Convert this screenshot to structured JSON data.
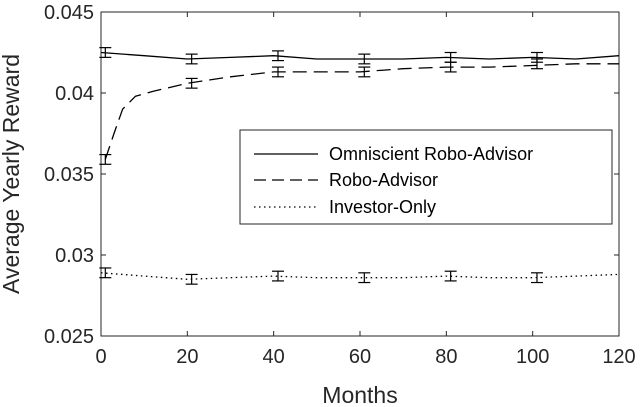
{
  "chart_data": {
    "type": "line",
    "title": "",
    "xlabel": "Months",
    "ylabel": "Average Yearly Reward",
    "xlim": [
      0,
      120
    ],
    "ylim": [
      0.025,
      0.045
    ],
    "xticks": [
      "0",
      "20",
      "40",
      "60",
      "80",
      "100",
      "120"
    ],
    "yticks": [
      "0.025",
      "0.03",
      "0.035",
      "0.04",
      "0.045"
    ],
    "grid": false,
    "legend_position": "center-right",
    "series": [
      {
        "name": "Omniscient Robo-Advisor",
        "style": "solid",
        "x": [
          0,
          10,
          20,
          30,
          40,
          50,
          60,
          70,
          80,
          90,
          100,
          110,
          120
        ],
        "y": [
          0.0425,
          0.0423,
          0.0421,
          0.0422,
          0.0423,
          0.0421,
          0.0421,
          0.0421,
          0.0422,
          0.0421,
          0.0422,
          0.0421,
          0.0423
        ],
        "errorbars": {
          "x": [
            1,
            21,
            41,
            61,
            81,
            101
          ],
          "y": [
            0.0425,
            0.0421,
            0.0423,
            0.0421,
            0.0422,
            0.0422
          ],
          "err": [
            0.0003,
            0.0003,
            0.0003,
            0.0003,
            0.0003,
            0.0003
          ]
        }
      },
      {
        "name": "Robo-Advisor",
        "style": "dashed",
        "x": [
          1,
          3,
          5,
          8,
          12,
          20,
          30,
          40,
          50,
          60,
          70,
          80,
          90,
          100,
          110,
          120
        ],
        "y": [
          0.0359,
          0.0375,
          0.039,
          0.0398,
          0.0401,
          0.0406,
          0.041,
          0.0413,
          0.0413,
          0.0413,
          0.0415,
          0.0416,
          0.0416,
          0.0417,
          0.0418,
          0.0418
        ],
        "errorbars": {
          "x": [
            1,
            21,
            41,
            61,
            81,
            101
          ],
          "y": [
            0.0359,
            0.0406,
            0.0413,
            0.0413,
            0.0416,
            0.0418
          ],
          "err": [
            0.0003,
            0.0003,
            0.0003,
            0.0003,
            0.0003,
            0.0003
          ]
        }
      },
      {
        "name": "Investor-Only",
        "style": "dotted",
        "x": [
          0,
          10,
          20,
          30,
          40,
          50,
          60,
          70,
          80,
          90,
          100,
          110,
          120
        ],
        "y": [
          0.0289,
          0.0287,
          0.0285,
          0.0286,
          0.0287,
          0.0286,
          0.0286,
          0.0286,
          0.0287,
          0.0286,
          0.0286,
          0.0287,
          0.0288
        ],
        "errorbars": {
          "x": [
            1,
            21,
            41,
            61,
            81,
            101
          ],
          "y": [
            0.0289,
            0.0285,
            0.0287,
            0.0286,
            0.0287,
            0.0286
          ],
          "err": [
            0.0003,
            0.0003,
            0.0003,
            0.0003,
            0.0003,
            0.0003
          ]
        }
      }
    ]
  }
}
